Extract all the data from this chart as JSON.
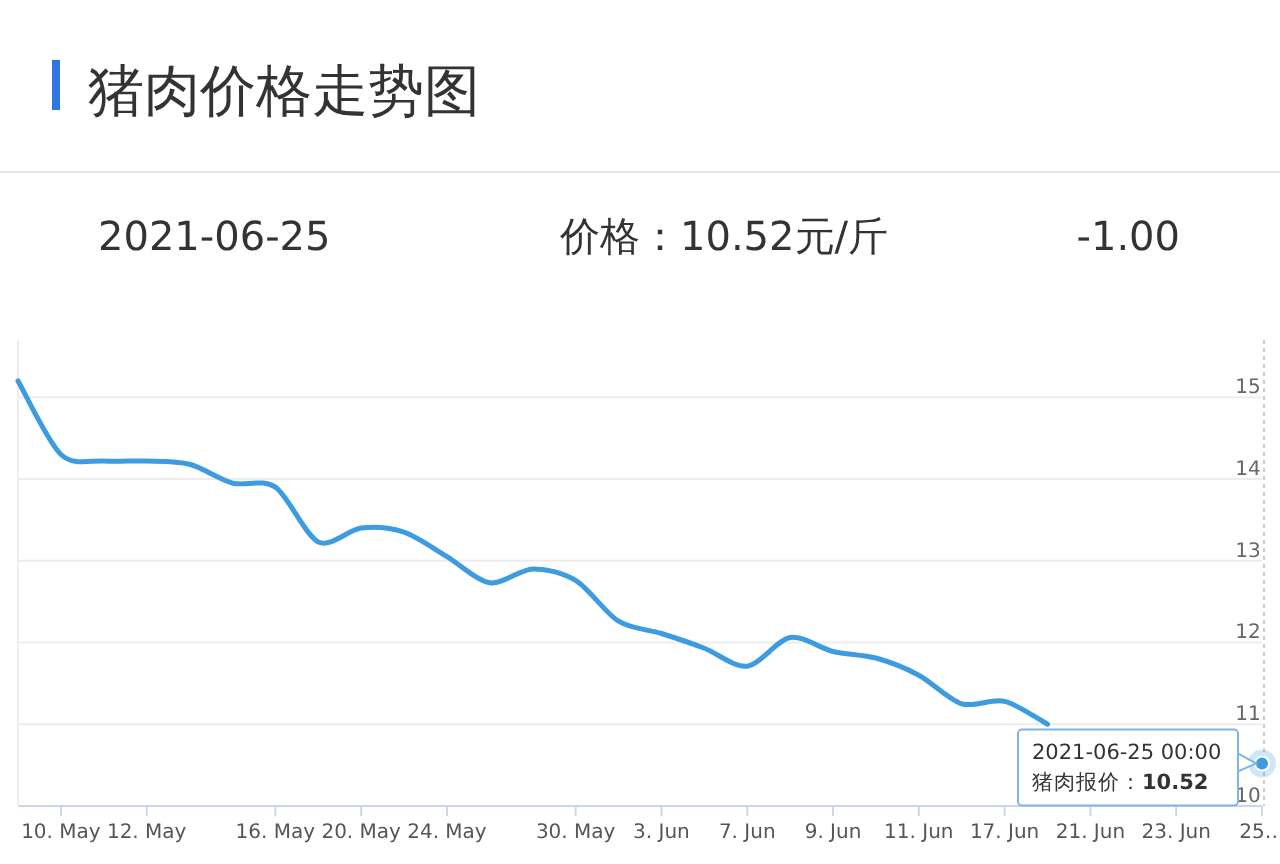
{
  "chart_data": {
    "type": "line",
    "title": "猪肉价格走势图",
    "annotations": [
      "2021-06-25",
      "价格：10.52元/斤",
      "-1.00",
      {
        "text": "2021-06-25 00:00\n猪肉报价：**10.52**",
        "x": "25…",
        "y": 10.52
      }
    ],
    "categories": [
      null,
      "10. May",
      null,
      "12. May",
      null,
      null,
      "16. May",
      null,
      "20. May",
      null,
      "24. May",
      null,
      null,
      "30. May",
      null,
      "3. Jun",
      null,
      "7. Jun",
      null,
      "9. Jun",
      null,
      "11. Jun",
      null,
      "17. Jun",
      null,
      "21. Jun",
      null,
      "23. Jun",
      null,
      "25…"
    ],
    "series": [
      {
        "color": "#3d9be0",
        "values": [
          15.2,
          14.3,
          14.22,
          14.22,
          14.18,
          13.95,
          13.9,
          13.23,
          13.4,
          13.35,
          13.05,
          12.73,
          12.9,
          12.76,
          12.26,
          12.11,
          11.93,
          11.71,
          12.06,
          11.89,
          11.81,
          11.6,
          11.25,
          11.28,
          11.0,
          null,
          null,
          null,
          null,
          10.52
        ]
      }
    ],
    "ylim": [
      10,
      15.7
    ],
    "yticks": [
      10,
      11,
      12,
      13,
      14,
      15
    ],
    "grid": "y"
  }
}
